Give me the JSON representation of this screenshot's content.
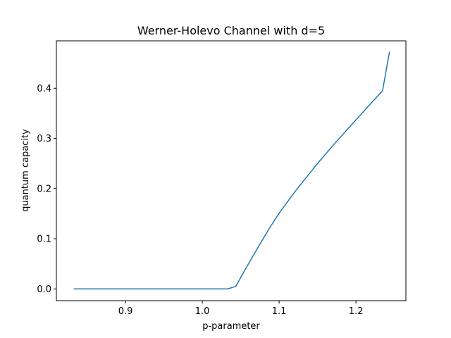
{
  "chart_data": {
    "type": "line",
    "title": "Werner-Holevo Channel with d=5",
    "xlabel": "p-parameter",
    "ylabel": "quantum capacity",
    "xlim": [
      0.81,
      1.265
    ],
    "ylim": [
      -0.0235,
      0.4945
    ],
    "xticks": [
      0.9,
      1.0,
      1.1,
      1.2
    ],
    "xtick_labels": [
      "0.9",
      "1.0",
      "1.1",
      "1.2"
    ],
    "yticks": [
      0.0,
      0.1,
      0.2,
      0.3,
      0.4
    ],
    "ytick_labels": [
      "0.0",
      "0.1",
      "0.2",
      "0.3",
      "0.4"
    ],
    "grid": false,
    "series": [
      {
        "color": "#1f77b4",
        "x": [
          0.8333,
          0.85,
          0.9,
          0.95,
          1.0,
          1.0333,
          1.0435,
          1.0526,
          1.0638,
          1.0753,
          1.087,
          1.1,
          1.1111,
          1.1236,
          1.1364,
          1.1494,
          1.1628,
          1.1765,
          1.1905,
          1.2048,
          1.2195,
          1.2346,
          1.2436
        ],
        "values": [
          0.0,
          0.0,
          0.0,
          0.0,
          0.0,
          0.0,
          0.005,
          0.03,
          0.06,
          0.09,
          0.12,
          0.151,
          0.174,
          0.2,
          0.224,
          0.249,
          0.273,
          0.297,
          0.321,
          0.345,
          0.37,
          0.395,
          0.472
        ]
      }
    ]
  }
}
